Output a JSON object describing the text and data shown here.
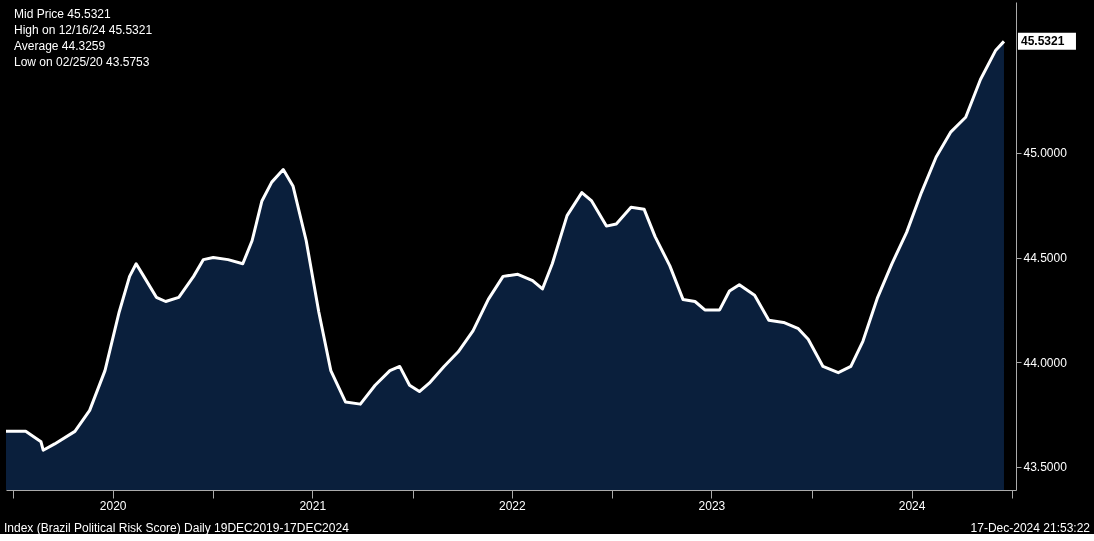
{
  "chart_data": {
    "type": "area",
    "x": [
      "2019-12-19",
      "2020-01-24",
      "2020-02-21",
      "2020-02-25",
      "2020-03-17",
      "2020-04-23",
      "2020-05-20",
      "2020-06-17",
      "2020-07-13",
      "2020-08-01",
      "2020-08-13",
      "2020-08-27",
      "2020-09-19",
      "2020-10-06",
      "2020-10-30",
      "2020-11-26",
      "2020-12-14",
      "2021-01-01",
      "2021-01-28",
      "2021-02-24",
      "2021-03-13",
      "2021-03-31",
      "2021-04-18",
      "2021-05-09",
      "2021-05-27",
      "2021-06-20",
      "2021-07-13",
      "2021-08-04",
      "2021-08-31",
      "2021-09-27",
      "2021-10-24",
      "2021-11-20",
      "2021-12-08",
      "2021-12-26",
      "2022-01-13",
      "2022-01-31",
      "2022-02-27",
      "2022-03-25",
      "2022-04-21",
      "2022-05-19",
      "2022-06-15",
      "2022-07-12",
      "2022-08-08",
      "2022-08-26",
      "2022-09-13",
      "2022-10-10",
      "2022-11-06",
      "2022-11-24",
      "2022-12-21",
      "2023-01-08",
      "2023-02-04",
      "2023-02-28",
      "2023-03-20",
      "2023-04-16",
      "2023-05-10",
      "2023-06-01",
      "2023-06-19",
      "2023-07-16",
      "2023-08-03",
      "2023-08-21",
      "2023-09-18",
      "2023-10-14",
      "2023-11-10",
      "2023-12-07",
      "2023-12-25",
      "2024-01-21",
      "2024-02-18",
      "2024-03-12",
      "2024-04-03",
      "2024-04-30",
      "2024-05-26",
      "2024-06-22",
      "2024-07-19",
      "2024-08-15",
      "2024-09-11",
      "2024-10-08",
      "2024-11-04",
      "2024-12-02",
      "2024-12-17"
    ],
    "series": [
      {
        "color": "#0a1f3c",
        "values": [
          43.67,
          43.67,
          43.62,
          43.58,
          43.61,
          43.67,
          43.77,
          43.96,
          44.24,
          44.41,
          44.47,
          44.41,
          44.31,
          44.29,
          44.31,
          44.41,
          44.49,
          44.5,
          44.49,
          44.47,
          44.58,
          44.77,
          44.86,
          44.92,
          44.84,
          44.58,
          44.24,
          43.96,
          43.81,
          43.8,
          43.89,
          43.96,
          43.98,
          43.89,
          43.86,
          43.9,
          43.98,
          44.05,
          44.15,
          44.3,
          44.41,
          44.42,
          44.39,
          44.35,
          44.47,
          44.7,
          44.81,
          44.77,
          44.65,
          44.66,
          44.74,
          44.73,
          44.6,
          44.46,
          44.3,
          44.29,
          44.25,
          44.25,
          44.34,
          44.37,
          44.32,
          44.2,
          44.19,
          44.16,
          44.11,
          43.98,
          43.95,
          43.98,
          44.1,
          44.31,
          44.47,
          44.62,
          44.81,
          44.98,
          45.1,
          45.17,
          45.35,
          45.49,
          45.5321
        ]
      }
    ],
    "xlim": [
      "2019-12-19",
      "2025-01-08"
    ],
    "xticks": [
      {
        "value": "2020-01-01",
        "label": null
      },
      {
        "value": "2020-07-01",
        "label": "2020"
      },
      {
        "value": "2021-01-01",
        "label": null
      },
      {
        "value": "2021-07-01",
        "label": "2021"
      },
      {
        "value": "2022-01-01",
        "label": null
      },
      {
        "value": "2022-07-01",
        "label": "2022"
      },
      {
        "value": "2023-01-01",
        "label": null
      },
      {
        "value": "2023-07-01",
        "label": "2023"
      },
      {
        "value": "2024-01-01",
        "label": null
      },
      {
        "value": "2024-07-01",
        "label": "2024"
      },
      {
        "value": "2025-01-01",
        "label": null
      }
    ],
    "ylim": [
      43.39,
      45.72
    ],
    "yticks": [
      {
        "value": 43.5,
        "label": "43.5000"
      },
      {
        "value": 44.0,
        "label": "44.0000"
      },
      {
        "value": 44.5,
        "label": "44.5000"
      },
      {
        "value": 45.0,
        "label": "45.0000"
      }
    ],
    "grid": false,
    "annotations": [
      "Mid Price  45.5321",
      "High on 12/16/24  45.5321",
      "Average  44.3259",
      "Low on 02/25/20  43.5753",
      {
        "text": "45.5321",
        "x": "2024-12-17",
        "y": 45.5321
      },
      "Index (Brazil Political Risk Score)  Daily 19DEC2019-17DEC2024",
      "17-Dec-2024 21:53:22"
    ]
  }
}
